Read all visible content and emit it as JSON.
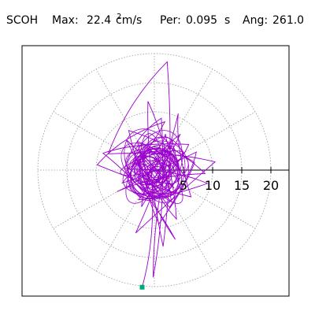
{
  "header": {
    "station": "SCOH",
    "max_label": "Max:",
    "max_value": "22.4",
    "max_unit": "cm/s",
    "max_unit_exp": "2",
    "per_label": "Per:",
    "per_value": "0.095",
    "per_unit": "s",
    "ang_label": "Ang:",
    "ang_value": "261.0"
  },
  "chart_data": {
    "type": "scatter",
    "title": "",
    "xlabel": "",
    "ylabel": "",
    "polar_grid": true,
    "radial_ticks": [
      5,
      10,
      15,
      20
    ],
    "radial_tick_labels": [
      "5",
      "10",
      "15",
      "20"
    ],
    "xlim": [
      -24,
      24
    ],
    "ylim": [
      -24,
      24
    ],
    "grid": true,
    "colors": {
      "trace": "#9900cc",
      "end_marker": "#00aa77",
      "grid": "#999999",
      "axis": "#000000"
    },
    "series": [
      {
        "values_note_free": true,
        "x": [
          0.5,
          -2.1,
          3.4,
          -4.8,
          2.6,
          7.2,
          -5.5,
          1.8,
          -9.8,
          6.3,
          4.1,
          -3.2,
          10.4,
          -7.9,
          2.2,
          1.5,
          -1.1,
          3.8,
          -2.9,
          5.6,
          1.9,
          -3.0,
          2.9,
          -1.6,
          0.8,
          6.9,
          2.4,
          -6.4,
          8.7,
          -4.4,
          3.6,
          -8.8,
          5.9,
          -1.4,
          4.4,
          -2.7,
          9.1,
          -5.1,
          1.2,
          -0.2,
          3.2,
          -2.2,
          1.6,
          0.1,
          -1.9,
          2.8,
          -3.4,
          0.9,
          -1.1,
          2.0,
          -0.5
        ],
        "y": [
          0.4,
          2.3,
          -3.1,
          5.2,
          -6.4,
          3.1,
          -2.2,
          8.3,
          0.9,
          -4.6,
          9.7,
          -10.8,
          1.4,
          2.8,
          18.6,
          -13.1,
          11.8,
          -8.4,
          4.9,
          -1.7,
          6.2,
          1.6,
          -5.4,
          4.3,
          -9.2,
          1.3,
          3.9,
          -3.7,
          -0.6,
          6.8,
          -11.9,
          2.9,
          4.4,
          -2.6,
          6.1,
          -5.1,
          -2.3,
          0.2,
          8.9,
          -18.4,
          5.1,
          -6.3,
          3.4,
          -1.2,
          2.6,
          -3.8,
          1.3,
          -2.1,
          0.7,
          0.3,
          -0.4
        ],
        "end_point": [
          -2.1,
          -20.1
        ]
      }
    ]
  }
}
